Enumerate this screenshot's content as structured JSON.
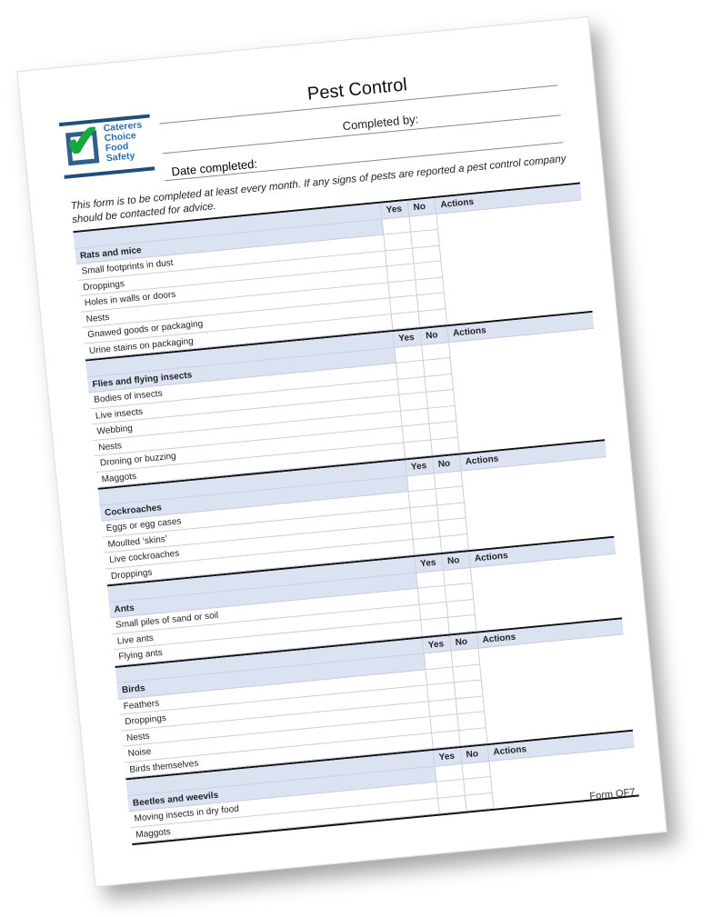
{
  "logo": {
    "lines": [
      "Caterers",
      "Choice",
      "Food",
      "Safety"
    ],
    "brand_color": "#2f6fb0",
    "tick_color": "#18a83a"
  },
  "header": {
    "title": "Pest Control",
    "completed_by_label": "Completed by:",
    "date_completed_label": "Date completed:"
  },
  "intro": "This form is to be completed at least every month. If any signs of pests are reported a pest control company should be contacted for advice.",
  "columns": {
    "yes": "Yes",
    "no": "No",
    "actions": "Actions"
  },
  "sections": [
    {
      "title": "Rats and mice",
      "items": [
        "Small footprints in dust",
        "Droppings",
        "Holes in walls or doors",
        "Nests",
        "Gnawed goods or packaging",
        "Urine stains on packaging"
      ]
    },
    {
      "title": "Flies and flying insects",
      "items": [
        "Bodies of insects",
        "Live insects",
        "Webbing",
        "Nests",
        "Droning or buzzing",
        "Maggots"
      ]
    },
    {
      "title": "Cockroaches",
      "items": [
        "Eggs or egg cases",
        "Moulted ‘skins’",
        "Live cockroaches",
        "Droppings"
      ]
    },
    {
      "title": "Ants",
      "items": [
        "Small piles of sand or soil",
        "Live ants",
        "Flying ants"
      ]
    },
    {
      "title": "Birds",
      "items": [
        "Feathers",
        "Droppings",
        "Nests",
        "Noise",
        "Birds themselves"
      ]
    },
    {
      "title": "Beetles and weevils",
      "items": [
        "Moving insects in dry food",
        "Maggots"
      ]
    }
  ],
  "footer": {
    "form_id": "Form OF7"
  },
  "colors": {
    "header_fill": "#dbe3f3"
  }
}
